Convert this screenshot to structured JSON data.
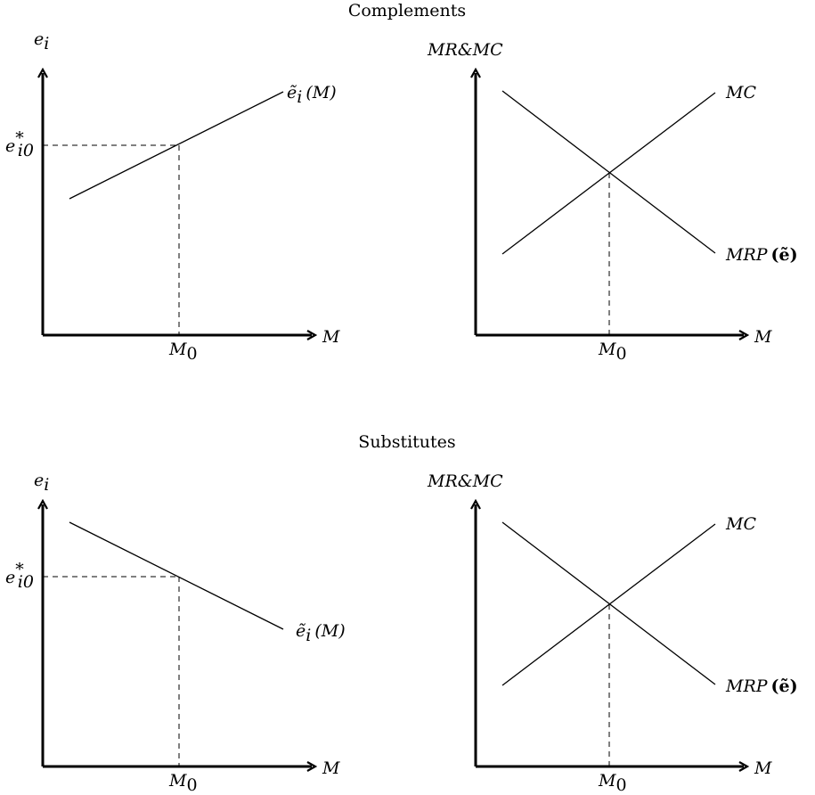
{
  "sections": [
    {
      "title": "Complements",
      "left": {
        "y_label": "e",
        "y_label_sub": "i",
        "x_label": "M",
        "x_mark": "M",
        "x_mark_sub": "0",
        "y_mark": "e",
        "y_mark_sup": "*",
        "y_mark_sub": "i0",
        "curve_label": "ẽ",
        "curve_label_sub": "i",
        "curve_label_arg": "(M)",
        "slope": "increasing"
      },
      "right": {
        "y_label": "MR&MC",
        "x_label": "M",
        "x_mark": "M",
        "x_mark_sub": "0",
        "mc_label": "MC",
        "mrp_label": "MRP",
        "mrp_arg": "(ẽ)"
      }
    },
    {
      "title": "Substitutes",
      "left": {
        "y_label": "e",
        "y_label_sub": "i",
        "x_label": "M",
        "x_mark": "M",
        "x_mark_sub": "0",
        "y_mark": "e",
        "y_mark_sup": "*",
        "y_mark_sub": "i0",
        "curve_label": "ẽ",
        "curve_label_sub": "i",
        "curve_label_arg": "(M)",
        "slope": "decreasing"
      },
      "right": {
        "y_label": "MR&MC",
        "x_label": "M",
        "x_mark": "M",
        "x_mark_sub": "0",
        "mc_label": "MC",
        "mrp_label": "MRP",
        "mrp_arg": "(ẽ)"
      }
    }
  ]
}
